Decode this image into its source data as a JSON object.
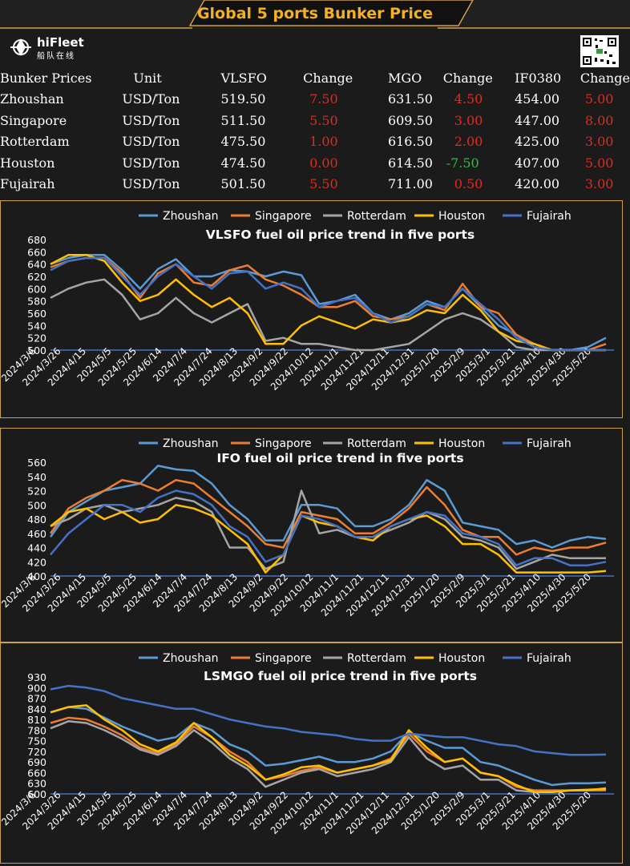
{
  "banner": {
    "title": "Global 5 ports  Bunker Price"
  },
  "brand": {
    "name": "hiFleet",
    "subtitle": "船队在线"
  },
  "table": {
    "headers": [
      "Bunker Prices",
      "Unit",
      "VLSFO",
      "Change",
      "MGO",
      "Change",
      "IF0380",
      "Change"
    ],
    "rows": [
      {
        "port": "Zhoushan",
        "unit": "USD/Ton",
        "vlsfo": "519.50",
        "vlsfo_change": "7.50",
        "mgo": "631.50",
        "mgo_change": "4.50",
        "ifo": "454.00",
        "ifo_change": "5.00"
      },
      {
        "port": "Singapore",
        "unit": "USD/Ton",
        "vlsfo": "511.50",
        "vlsfo_change": "5.50",
        "mgo": "609.50",
        "mgo_change": "3.00",
        "ifo": "447.00",
        "ifo_change": "8.00"
      },
      {
        "port": "Rotterdam",
        "unit": "USD/Ton",
        "vlsfo": "475.50",
        "vlsfo_change": "1.00",
        "mgo": "616.50",
        "mgo_change": "2.00",
        "ifo": "425.00",
        "ifo_change": "3.00"
      },
      {
        "port": "Houston",
        "unit": "USD/Ton",
        "vlsfo": "474.50",
        "vlsfo_change": "0.00",
        "mgo": "614.50",
        "mgo_change": "-7.50",
        "ifo": "407.00",
        "ifo_change": "5.00"
      },
      {
        "port": "Fujairah",
        "unit": "USD/Ton",
        "vlsfo": "501.50",
        "vlsfo_change": "5.50",
        "mgo": "711.00",
        "mgo_change": "0.50",
        "ifo": "420.00",
        "ifo_change": "3.00"
      }
    ]
  },
  "colors": {
    "Zhoushan": "#5b9bd5",
    "Singapore": "#ed7d31",
    "Rotterdam": "#a5a5a5",
    "Houston": "#ffc000",
    "Fujairah": "#4472c4",
    "positive": "#e02b1e",
    "negative": "#2fbf3a",
    "accent": "#f2b21c"
  },
  "chart_data": [
    {
      "type": "line",
      "title": "VLSFO fuel oil price trend in five ports",
      "x_ticks": [
        "2024/3/6",
        "2024/3/26",
        "2024/4/15",
        "2024/5/5",
        "2024/5/25",
        "2024/6/14",
        "2024/7/4",
        "2024/7/24",
        "2024/8/13",
        "2024/9/2",
        "2024/9/22",
        "2024/10/12",
        "2024/11/1",
        "2024/11/21",
        "2024/12/11",
        "2024/12/31",
        "2025/1/20",
        "2025/2/9",
        "2025/3/1",
        "2025/3/21",
        "2025/4/10",
        "2025/4/30",
        "2025/5/20"
      ],
      "y_ticks": [
        500,
        520,
        540,
        560,
        580,
        600,
        620,
        640,
        660,
        680
      ],
      "ylim": [
        500,
        680
      ],
      "series": [
        {
          "name": "Zhoushan",
          "values": [
            640,
            650,
            655,
            655,
            630,
            600,
            632,
            648,
            620,
            620,
            630,
            628,
            620,
            628,
            622,
            575,
            580,
            590,
            560,
            550,
            560,
            580,
            570,
            600,
            570,
            540,
            525,
            505,
            500,
            500,
            505,
            520
          ]
        },
        {
          "name": "Singapore",
          "values": [
            635,
            645,
            650,
            650,
            625,
            585,
            625,
            640,
            610,
            605,
            630,
            638,
            615,
            605,
            590,
            570,
            570,
            580,
            555,
            550,
            555,
            575,
            565,
            608,
            570,
            560,
            525,
            510,
            500,
            500,
            500,
            510
          ]
        },
        {
          "name": "Rotterdam",
          "values": [
            585,
            600,
            610,
            615,
            590,
            550,
            560,
            585,
            560,
            545,
            560,
            575,
            515,
            520,
            510,
            510,
            505,
            500,
            500,
            505,
            510,
            530,
            550,
            560,
            550,
            530,
            505,
            500,
            500,
            500,
            500,
            500
          ]
        },
        {
          "name": "Houston",
          "values": [
            640,
            655,
            655,
            645,
            610,
            580,
            590,
            615,
            590,
            570,
            585,
            560,
            510,
            510,
            540,
            555,
            545,
            535,
            550,
            545,
            550,
            565,
            560,
            590,
            565,
            530,
            515,
            510,
            500,
            500,
            500,
            500
          ]
        },
        {
          "name": "Fujairah",
          "values": [
            630,
            645,
            650,
            650,
            620,
            590,
            620,
            640,
            620,
            600,
            625,
            628,
            600,
            610,
            600,
            570,
            580,
            585,
            560,
            545,
            555,
            575,
            570,
            600,
            575,
            550,
            520,
            505,
            500,
            500,
            500,
            500
          ]
        }
      ]
    },
    {
      "type": "line",
      "title": "IFO fuel oil price trend in five ports",
      "x_ticks": [
        "2024/3/6",
        "2024/3/26",
        "2024/4/15",
        "2024/5/5",
        "2024/5/25",
        "2024/6/14",
        "2024/7/4",
        "2024/7/24",
        "2024/8/13",
        "2024/9/2",
        "2024/9/22",
        "2024/10/12",
        "2024/11/1",
        "2024/11/21",
        "2024/12/11",
        "2024/12/31",
        "2025/1/20",
        "2025/2/9",
        "2025/3/1",
        "2025/3/21",
        "2025/4/10",
        "2025/4/30",
        "2025/5/20"
      ],
      "y_ticks": [
        400,
        420,
        440,
        460,
        480,
        500,
        520,
        540,
        560
      ],
      "ylim": [
        400,
        560
      ],
      "series": [
        {
          "name": "Zhoushan",
          "values": [
            455,
            490,
            505,
            520,
            525,
            530,
            555,
            550,
            548,
            530,
            500,
            480,
            450,
            450,
            500,
            500,
            495,
            470,
            470,
            480,
            500,
            535,
            520,
            475,
            470,
            465,
            445,
            450,
            440,
            450,
            455,
            452
          ]
        },
        {
          "name": "Singapore",
          "values": [
            460,
            495,
            510,
            520,
            535,
            530,
            520,
            535,
            530,
            510,
            490,
            470,
            445,
            440,
            490,
            485,
            480,
            460,
            460,
            475,
            495,
            525,
            500,
            465,
            455,
            455,
            430,
            440,
            435,
            440,
            440,
            447
          ]
        },
        {
          "name": "Rotterdam",
          "values": [
            470,
            480,
            495,
            500,
            490,
            495,
            500,
            510,
            505,
            490,
            440,
            440,
            410,
            420,
            520,
            460,
            465,
            455,
            455,
            465,
            475,
            490,
            480,
            455,
            450,
            440,
            410,
            420,
            430,
            425,
            425,
            425
          ]
        },
        {
          "name": "Houston",
          "values": [
            470,
            490,
            495,
            480,
            490,
            475,
            480,
            500,
            495,
            485,
            465,
            445,
            405,
            430,
            485,
            475,
            470,
            455,
            450,
            470,
            480,
            485,
            470,
            445,
            445,
            430,
            405,
            405,
            405,
            405,
            405,
            407
          ]
        },
        {
          "name": "Fujairah",
          "values": [
            430,
            460,
            480,
            500,
            500,
            490,
            510,
            520,
            515,
            500,
            470,
            455,
            420,
            430,
            485,
            480,
            470,
            455,
            455,
            470,
            480,
            490,
            485,
            460,
            455,
            445,
            415,
            425,
            425,
            415,
            415,
            420
          ]
        }
      ]
    },
    {
      "type": "line",
      "title": "LSMGO fuel oil price trend in five ports",
      "x_ticks": [
        "2024/3/6",
        "2024/3/26",
        "2024/4/15",
        "2024/5/5",
        "2024/5/25",
        "2024/6/14",
        "2024/7/4",
        "2024/7/24",
        "2024/8/13",
        "2024/9/2",
        "2024/9/22",
        "2024/10/12",
        "2024/11/1",
        "2024/11/21",
        "2024/12/11",
        "2024/12/31",
        "2025/1/20",
        "2025/2/9",
        "2025/3/1",
        "2025/3/21",
        "2025/4/10",
        "2025/4/30",
        "2025/5/20"
      ],
      "y_ticks": [
        600,
        630,
        660,
        690,
        720,
        750,
        780,
        810,
        840,
        870,
        900,
        930
      ],
      "ylim": [
        600,
        930
      ],
      "series": [
        {
          "name": "Zhoushan",
          "values": [
            830,
            845,
            840,
            815,
            790,
            770,
            750,
            760,
            800,
            780,
            740,
            720,
            680,
            685,
            695,
            705,
            690,
            690,
            700,
            720,
            775,
            750,
            730,
            730,
            690,
            680,
            660,
            640,
            625,
            630,
            630,
            632
          ]
        },
        {
          "name": "Singapore",
          "values": [
            800,
            815,
            810,
            790,
            765,
            730,
            715,
            740,
            790,
            760,
            720,
            690,
            640,
            650,
            665,
            675,
            660,
            670,
            680,
            700,
            770,
            720,
            690,
            700,
            660,
            650,
            620,
            610,
            610,
            610,
            610,
            610
          ]
        },
        {
          "name": "Rotterdam",
          "values": [
            785,
            805,
            800,
            780,
            755,
            725,
            710,
            735,
            780,
            745,
            700,
            670,
            620,
            640,
            660,
            670,
            650,
            660,
            670,
            690,
            760,
            700,
            670,
            680,
            640,
            640,
            610,
            605,
            605,
            610,
            610,
            616
          ]
        },
        {
          "name": "Houston",
          "values": [
            830,
            845,
            850,
            810,
            780,
            740,
            720,
            745,
            800,
            760,
            710,
            680,
            640,
            655,
            675,
            680,
            660,
            670,
            680,
            695,
            780,
            730,
            690,
            700,
            660,
            650,
            625,
            605,
            605,
            610,
            612,
            614
          ]
        },
        {
          "name": "Fujairah",
          "values": [
            895,
            905,
            900,
            890,
            870,
            860,
            850,
            840,
            840,
            825,
            810,
            800,
            790,
            785,
            775,
            770,
            765,
            755,
            750,
            750,
            770,
            765,
            760,
            760,
            750,
            740,
            735,
            720,
            715,
            710,
            710,
            711
          ]
        }
      ]
    }
  ]
}
